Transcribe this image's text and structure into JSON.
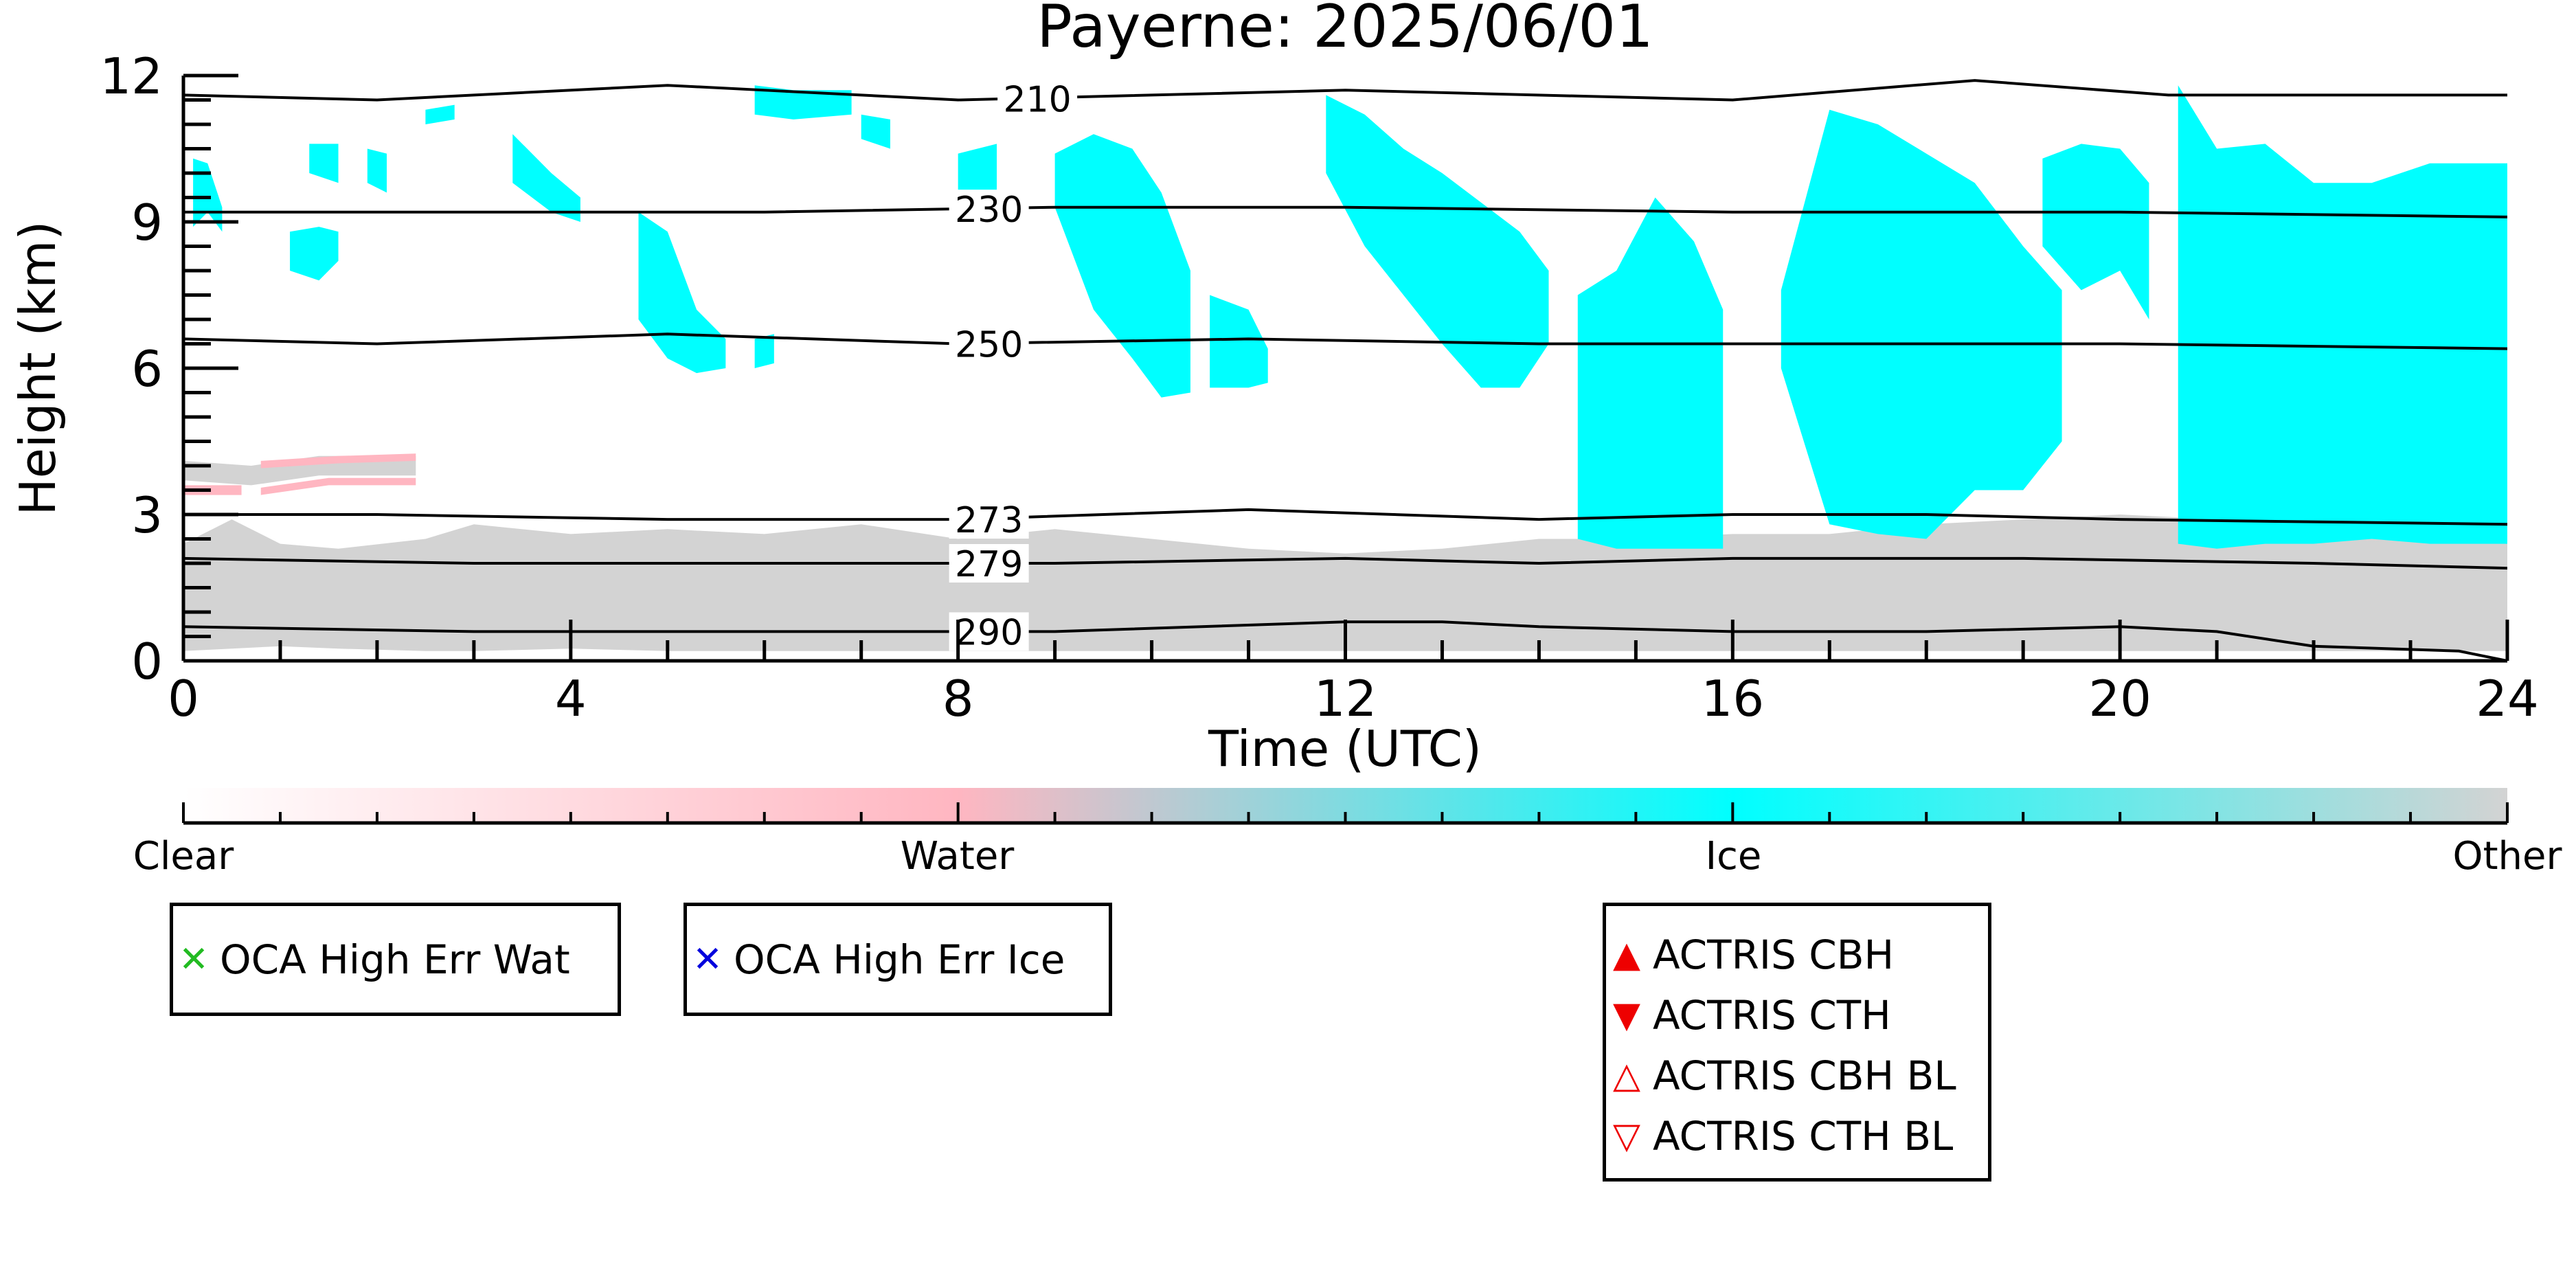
{
  "chart_data": {
    "type": "heatmap",
    "title": "Payerne: 2025/06/01",
    "xlabel": "Time (UTC)",
    "ylabel": "Height (km)",
    "xlim": [
      0,
      24
    ],
    "ylim": [
      0,
      12
    ],
    "xticks": [
      0,
      4,
      8,
      12,
      16,
      20,
      24
    ],
    "yticks": [
      0,
      3,
      6,
      9,
      12
    ],
    "grid": false,
    "classification": {
      "categories": [
        "Clear",
        "Water",
        "Ice",
        "Other"
      ],
      "colors": {
        "Clear": "#ffffff",
        "Water": "#ffb6c1",
        "Ice": "#00ffff",
        "Other": "#d3d3d3"
      }
    },
    "regions": [
      {
        "class": "Other",
        "segments": [
          [
            0,
            2.4,
            0.2
          ],
          [
            0.5,
            2.9,
            0.25
          ],
          [
            1,
            2.4,
            0.3
          ],
          [
            1.6,
            2.3,
            0.25
          ],
          [
            2.5,
            2.5,
            0.2
          ],
          [
            3,
            2.8,
            0.2
          ],
          [
            4,
            2.6,
            0.25
          ],
          [
            5,
            2.7,
            0.2
          ],
          [
            6,
            2.6,
            0.2
          ],
          [
            7,
            2.8,
            0.2
          ],
          [
            8,
            2.5,
            0.2
          ],
          [
            9,
            2.7,
            0.2
          ],
          [
            10,
            2.5,
            0.2
          ],
          [
            11,
            2.3,
            0.2
          ],
          [
            12,
            2.2,
            0.2
          ],
          [
            13,
            2.3,
            0.2
          ],
          [
            14,
            2.5,
            0.2
          ],
          [
            15,
            2.5,
            0.2
          ],
          [
            16,
            2.6,
            0.2
          ],
          [
            17,
            2.6,
            0.2
          ],
          [
            18,
            2.8,
            0.2
          ],
          [
            19,
            2.9,
            0.2
          ],
          [
            20,
            3.0,
            0.2
          ],
          [
            21,
            2.9,
            0.2
          ],
          [
            22,
            2.8,
            0.2
          ],
          [
            23,
            2.7,
            0.2
          ],
          [
            24,
            2.6,
            0.2
          ]
        ]
      },
      {
        "class": "Other",
        "segments": [
          [
            0,
            3.7,
            4.1
          ],
          [
            0.7,
            3.6,
            4.0
          ],
          [
            1.4,
            3.8,
            4.2
          ],
          [
            2.4,
            3.8,
            4.2
          ]
        ]
      },
      {
        "class": "Water",
        "segments": [
          [
            0,
            3.4,
            3.6
          ],
          [
            0.6,
            3.4,
            3.6
          ]
        ]
      },
      {
        "class": "Water",
        "segments": [
          [
            0.8,
            3.4,
            3.55
          ],
          [
            1.5,
            3.6,
            3.75
          ],
          [
            2.4,
            3.6,
            3.75
          ]
        ]
      },
      {
        "class": "Water",
        "segments": [
          [
            0.8,
            3.95,
            4.1
          ],
          [
            1.6,
            4.05,
            4.2
          ],
          [
            2.4,
            4.1,
            4.25
          ]
        ]
      },
      {
        "class": "Ice",
        "segments": [
          [
            0.1,
            8.9,
            10.3
          ],
          [
            0.25,
            9.2,
            10.2
          ],
          [
            0.4,
            8.8,
            9.3
          ]
        ]
      },
      {
        "class": "Ice",
        "segments": [
          [
            1.3,
            10.0,
            10.6
          ],
          [
            1.6,
            9.8,
            10.6
          ]
        ]
      },
      {
        "class": "Ice",
        "segments": [
          [
            1.9,
            9.8,
            10.5
          ],
          [
            2.1,
            9.6,
            10.4
          ]
        ]
      },
      {
        "class": "Ice",
        "segments": [
          [
            1.1,
            8.0,
            8.8
          ],
          [
            1.4,
            7.8,
            8.9
          ],
          [
            1.6,
            8.2,
            8.8
          ]
        ]
      },
      {
        "class": "Ice",
        "segments": [
          [
            2.5,
            11.0,
            11.3
          ],
          [
            2.8,
            11.1,
            11.4
          ]
        ]
      },
      {
        "class": "Ice",
        "segments": [
          [
            3.4,
            9.8,
            10.8
          ],
          [
            3.8,
            9.2,
            10.0
          ],
          [
            4.1,
            9.0,
            9.5
          ]
        ]
      },
      {
        "class": "Ice",
        "segments": [
          [
            4.7,
            7.0,
            9.2
          ],
          [
            5.0,
            6.2,
            8.8
          ],
          [
            5.3,
            5.9,
            7.2
          ],
          [
            5.6,
            6.0,
            6.6
          ]
        ]
      },
      {
        "class": "Ice",
        "segments": [
          [
            5.9,
            6.0,
            6.6
          ],
          [
            6.1,
            6.1,
            6.7
          ]
        ]
      },
      {
        "class": "Ice",
        "segments": [
          [
            5.9,
            11.2,
            11.8
          ],
          [
            6.3,
            11.1,
            11.7
          ],
          [
            6.9,
            11.2,
            11.7
          ]
        ]
      },
      {
        "class": "Ice",
        "segments": [
          [
            7.0,
            10.7,
            11.2
          ],
          [
            7.3,
            10.5,
            11.1
          ]
        ]
      },
      {
        "class": "Ice",
        "segments": [
          [
            8.0,
            9.6,
            10.4
          ],
          [
            8.4,
            9.2,
            10.6
          ]
        ]
      },
      {
        "class": "Ice",
        "segments": [
          [
            9.0,
            9.3,
            10.4
          ],
          [
            9.4,
            7.2,
            10.8
          ],
          [
            9.8,
            6.2,
            10.5
          ],
          [
            10.1,
            5.4,
            9.6
          ],
          [
            10.4,
            5.5,
            8.0
          ]
        ]
      },
      {
        "class": "Ice",
        "segments": [
          [
            10.6,
            5.6,
            7.5
          ],
          [
            11.0,
            5.6,
            7.2
          ],
          [
            11.2,
            5.7,
            6.4
          ]
        ]
      },
      {
        "class": "Ice",
        "segments": [
          [
            11.8,
            10.0,
            11.6
          ],
          [
            12.2,
            8.5,
            11.2
          ],
          [
            12.6,
            7.5,
            10.5
          ],
          [
            13.0,
            6.5,
            10.0
          ],
          [
            13.4,
            5.6,
            9.4
          ],
          [
            13.8,
            5.6,
            8.8
          ],
          [
            14.1,
            6.5,
            8.0
          ]
        ]
      },
      {
        "class": "Ice",
        "segments": [
          [
            14.4,
            2.5,
            7.5
          ],
          [
            14.8,
            2.3,
            8.0
          ],
          [
            15.2,
            2.3,
            9.5
          ],
          [
            15.6,
            2.3,
            8.6
          ],
          [
            15.9,
            2.3,
            7.2
          ]
        ]
      },
      {
        "class": "Ice",
        "segments": [
          [
            16.5,
            6.0,
            7.6
          ],
          [
            17.0,
            2.8,
            11.3
          ],
          [
            17.5,
            2.6,
            11.0
          ],
          [
            18.0,
            2.5,
            10.4
          ],
          [
            18.5,
            3.5,
            9.8
          ],
          [
            19.0,
            3.5,
            8.5
          ],
          [
            19.4,
            4.5,
            7.6
          ]
        ]
      },
      {
        "class": "Ice",
        "segments": [
          [
            19.2,
            8.5,
            10.3
          ],
          [
            19.6,
            7.6,
            10.6
          ],
          [
            20.0,
            8.0,
            10.5
          ],
          [
            20.3,
            7.0,
            9.8
          ]
        ]
      },
      {
        "class": "Ice",
        "segments": [
          [
            20.6,
            2.4,
            11.8
          ],
          [
            21.0,
            2.3,
            10.5
          ],
          [
            21.5,
            2.4,
            10.6
          ],
          [
            22.0,
            2.4,
            9.8
          ],
          [
            22.6,
            2.5,
            9.8
          ],
          [
            23.2,
            2.4,
            10.2
          ],
          [
            24.0,
            2.4,
            10.2
          ]
        ]
      }
    ],
    "isotherms": [
      {
        "label": "210",
        "x": [
          0,
          2,
          5,
          8,
          12,
          16,
          18.5,
          20.5,
          24
        ],
        "y": [
          11.6,
          11.5,
          11.8,
          11.5,
          11.7,
          11.5,
          11.9,
          11.6,
          11.6
        ]
      },
      {
        "label": "230",
        "x": [
          0,
          3,
          6,
          9,
          12,
          16,
          20,
          24
        ],
        "y": [
          9.2,
          9.2,
          9.2,
          9.3,
          9.3,
          9.2,
          9.2,
          9.1
        ]
      },
      {
        "label": "250",
        "x": [
          0,
          2,
          5,
          8,
          11,
          14,
          18,
          20,
          24
        ],
        "y": [
          6.6,
          6.5,
          6.7,
          6.5,
          6.6,
          6.5,
          6.5,
          6.5,
          6.4
        ]
      },
      {
        "label": "273",
        "x": [
          0,
          2,
          5,
          8,
          11,
          14,
          16,
          18,
          20,
          24
        ],
        "y": [
          3.0,
          3.0,
          2.9,
          2.9,
          3.1,
          2.9,
          3.0,
          3.0,
          2.9,
          2.8
        ]
      },
      {
        "label": "279",
        "x": [
          0,
          3,
          6,
          9,
          12,
          14,
          16,
          19,
          22,
          24
        ],
        "y": [
          2.1,
          2.0,
          2.0,
          2.0,
          2.1,
          2.0,
          2.1,
          2.1,
          2.0,
          1.9
        ]
      },
      {
        "label": "290",
        "x": [
          0,
          3,
          6,
          9,
          12,
          13,
          14,
          16,
          18,
          20,
          21,
          22,
          23.5,
          24
        ],
        "y": [
          0.7,
          0.6,
          0.6,
          0.6,
          0.8,
          0.8,
          0.7,
          0.6,
          0.6,
          0.7,
          0.6,
          0.3,
          0.2,
          0.0
        ]
      }
    ],
    "colorbar": {
      "labels": [
        "Clear",
        "Water",
        "Ice",
        "Other"
      ],
      "stops": [
        0,
        0.333,
        0.667,
        1
      ],
      "colors": [
        "#ffffff",
        "#ffb6c1",
        "#00ffff",
        "#d3d3d3"
      ]
    }
  },
  "legends": [
    {
      "entries": [
        {
          "marker": "✕",
          "color": "#22bb22",
          "label": "OCA High Err Wat"
        }
      ]
    },
    {
      "entries": [
        {
          "marker": "✕",
          "color": "#0000dd",
          "label": "OCA High Err Ice"
        }
      ]
    },
    {
      "entries": [
        {
          "marker": "▲",
          "color": "#ee0000",
          "label": "ACTRIS CBH"
        },
        {
          "marker": "▼",
          "color": "#ee0000",
          "label": "ACTRIS CTH"
        },
        {
          "marker": "△",
          "color": "#ee0000",
          "label": "ACTRIS CBH BL"
        },
        {
          "marker": "▽",
          "color": "#ee0000",
          "label": "ACTRIS CTH BL"
        }
      ]
    }
  ]
}
